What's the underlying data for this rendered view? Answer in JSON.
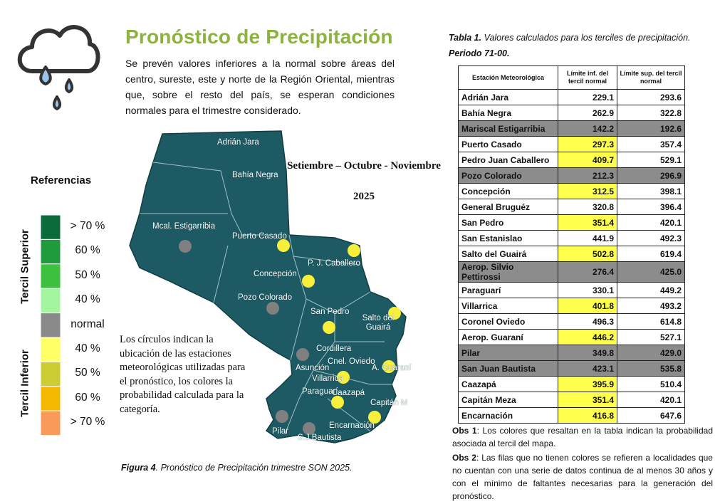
{
  "header": {
    "title": "Pronóstico de Precipitación",
    "text": "Se prevén valores inferiores a la normal sobre áreas del centro, sureste, este y norte de la Región Oriental, mientras que, sobre el resto del país, se esperan condiciones normales para el trimestre considerado."
  },
  "map": {
    "period": "Setiembre – Octubre - Noviembre",
    "year": "2025",
    "stations": [
      {
        "label": "Adrián Jara"
      },
      {
        "label": "Bahía Negra"
      },
      {
        "label": "Mcal. Estigarribia",
        "dot": "#808080"
      },
      {
        "label": "Puerto Casado",
        "dot": "#f7ef3a"
      },
      {
        "label": "P. J. Caballero",
        "dot": "#f7ef3a"
      },
      {
        "label": "Concepción",
        "dot": "#f7ef3a"
      },
      {
        "label": "Pozo Colorado",
        "dot": "#808080"
      },
      {
        "label": "San Pedro",
        "dot": "#f7ef3a"
      },
      {
        "label": "Salto del Guairá",
        "dot": "#f7ef3a"
      },
      {
        "label": "Cordillera"
      },
      {
        "label": "Asunción",
        "dot": "#808080"
      },
      {
        "label": "Cnel. Oviedo"
      },
      {
        "label": "A. Guaraní",
        "dot": "#f7ef3a"
      },
      {
        "label": "Villarrica",
        "dot": "#f7ef3a"
      },
      {
        "label": "Paraguarí"
      },
      {
        "label": "Caazapá",
        "dot": "#f7ef3a"
      },
      {
        "label": "Capitán M",
        "dot": "#f7ef3a"
      },
      {
        "label": "Encarnación"
      },
      {
        "label": "Pilar",
        "dot": "#808080"
      },
      {
        "label": "S.J.Bautista",
        "dot": "#808080"
      }
    ],
    "note": "Los círculos indican la ubicación de las estaciones meteorológicas utilizadas para el pronóstico, los colores la probabilidad calculada para la categoría.",
    "caption_label": "Figura 4",
    "caption_text": ". Pronóstico de Precipitación trimestre SON 2025."
  },
  "legend": {
    "title": "Referencias",
    "upper": "Tercil Superior",
    "lower": "Tercil Inferior",
    "items": [
      {
        "label": "> 70 %",
        "color": "#0b6b3a"
      },
      {
        "label": "60 %",
        "color": "#1f9a3c"
      },
      {
        "label": "50 %",
        "color": "#3dbf3f"
      },
      {
        "label": "40 %",
        "color": "#a3f5a0"
      },
      {
        "label": "normal",
        "color": "#8a8a8a"
      },
      {
        "label": "40 %",
        "color": "#ffff66"
      },
      {
        "label": "50 %",
        "color": "#cccc33"
      },
      {
        "label": "60 %",
        "color": "#f5b800"
      },
      {
        "label": "> 70 %",
        "color": "#f79a5a"
      }
    ]
  },
  "table": {
    "caption_label": "Tabla 1.",
    "caption_text": " Valores calculados para los terciles de precipitación.",
    "caption_period": "Periodo 71-00.",
    "headers": [
      "Estación Meteorológica",
      "Límite inf. del tercil normal",
      "Límite sup. del tercil normal"
    ],
    "rows": [
      {
        "cells": [
          "Adrián Jara",
          "229.1",
          "293.6"
        ]
      },
      {
        "cells": [
          "Bahía Negra",
          "262.9",
          "322.8"
        ]
      },
      {
        "cells": [
          "Mariscal Estigarribia",
          "142.2",
          "192.6"
        ],
        "color": "#8c8c8c"
      },
      {
        "cells": [
          "Puerto Casado",
          "297.3",
          "357.4"
        ],
        "lower_color": "#ffff4d"
      },
      {
        "cells": [
          "Pedro Juan Caballero",
          "409.7",
          "529.1"
        ],
        "lower_color": "#ffff4d"
      },
      {
        "cells": [
          "Pozo Colorado",
          "212.3",
          "296.9"
        ],
        "color": "#8c8c8c"
      },
      {
        "cells": [
          "Concepción",
          "312.5",
          "398.1"
        ],
        "lower_color": "#ffff4d"
      },
      {
        "cells": [
          "General Bruguéz",
          "320.8",
          "396.4"
        ]
      },
      {
        "cells": [
          "San Pedro",
          "351.4",
          "420.1"
        ],
        "lower_color": "#ffff4d"
      },
      {
        "cells": [
          "San Estanislao",
          "441.9",
          "492.3"
        ]
      },
      {
        "cells": [
          "Salto del Guairá",
          "502.8",
          "619.4"
        ],
        "lower_color": "#ffff4d"
      },
      {
        "cells": [
          "Aerop. Silvio Pettirossi",
          "276.4",
          "425.0"
        ],
        "color": "#8c8c8c"
      },
      {
        "cells": [
          "Paraguarí",
          "330.1",
          "449.2"
        ]
      },
      {
        "cells": [
          "Villarrica",
          "401.8",
          "493.2"
        ],
        "lower_color": "#ffff4d"
      },
      {
        "cells": [
          "Coronel Oviedo",
          "496.3",
          "614.8"
        ]
      },
      {
        "cells": [
          "Aerop. Guaraní",
          "446.2",
          "527.1"
        ],
        "lower_color": "#ffff4d"
      },
      {
        "cells": [
          "Pilar",
          "349.8",
          "429.0"
        ],
        "color": "#8c8c8c"
      },
      {
        "cells": [
          "San Juan Bautista",
          "423.1",
          "535.8"
        ],
        "color": "#8c8c8c"
      },
      {
        "cells": [
          "Caazapá",
          "395.9",
          "510.4"
        ],
        "lower_color": "#ffff4d"
      },
      {
        "cells": [
          "Capitán Meza",
          "351.4",
          "420.1"
        ],
        "lower_color": "#ffff4d"
      },
      {
        "cells": [
          "Encarnación",
          "416.8",
          "647.6"
        ],
        "lower_color": "#ffff4d"
      }
    ],
    "observations": [
      {
        "label": "Obs 1",
        "text": ": Los colores que resaltan en la tabla indican la probabilidad asociada al tercil del mapa."
      },
      {
        "label": "Obs 2",
        "text": ": Las filas que no tienen colores se refieren a localidades que no cuentan con una serie de datos continua de al menos 30 años y con el mínimo de faltantes necesarias para la generación del pronóstico."
      }
    ]
  }
}
